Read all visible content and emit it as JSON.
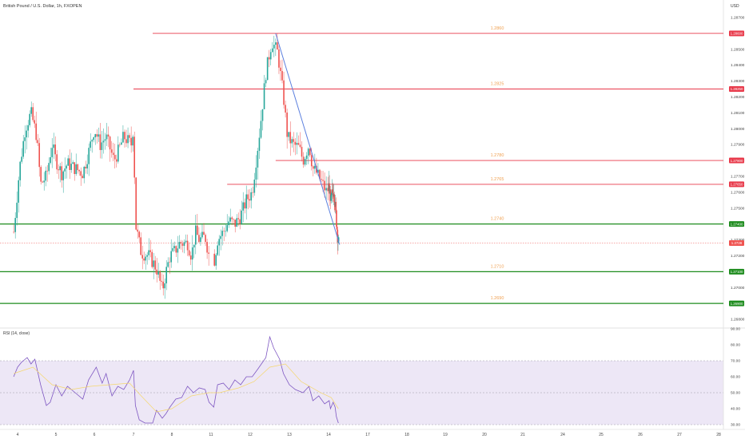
{
  "header": {
    "title": "British Pound / U.S. Dollar, 1h, FXOPEN",
    "currency": "USD"
  },
  "colors": {
    "up": "#26a69a",
    "down": "#ef5350",
    "resistance": "#e8394a",
    "support": "#1e8c1e",
    "trendline": "#5b7fde",
    "level_text": "#f0a050",
    "rsi_line": "#7e57c2",
    "rsi_ma": "#f5d76e",
    "rsi_band": "#ede7f6"
  },
  "chart_data": [
    {
      "type": "candlestick",
      "title": "British Pound / U.S. Dollar, 1h, FXOPEN",
      "ylim": [
        1.2675,
        1.2875
      ],
      "y_ticks": [
        "1.28700",
        "1.28600",
        "1.28500",
        "1.28400",
        "1.28300",
        "1.28200",
        "1.28100",
        "1.28000",
        "1.27900",
        "1.27800",
        "1.27700",
        "1.27600",
        "1.27500",
        "1.27400",
        "1.27300",
        "1.27200",
        "1.27100",
        "1.27000",
        "1.26900",
        "1.26800"
      ],
      "x_ticks": [
        "4",
        "5",
        "6",
        "7",
        "8",
        "11",
        "12",
        "13",
        "14",
        "17",
        "18",
        "19",
        "20",
        "21",
        "24",
        "25",
        "26",
        "27",
        "28"
      ],
      "x_tick_days": [
        4,
        5,
        6,
        7,
        8,
        11,
        12,
        13,
        14,
        17,
        18,
        19,
        20,
        21,
        24,
        25,
        26,
        27,
        28
      ],
      "current_price": "1.2728",
      "levels": [
        {
          "label": "1.2860",
          "tag": "1.28600",
          "price": 1.286,
          "kind": "resistance",
          "start_day": 7.5
        },
        {
          "label": "1.2825",
          "tag": "1.28250",
          "price": 1.2825,
          "kind": "resistance",
          "start_day": 7.0
        },
        {
          "label": "1.2780",
          "tag": "1.27800",
          "price": 1.278,
          "kind": "resistance",
          "start_day": 12.65
        },
        {
          "label": "1.2765",
          "tag": "1.27650",
          "price": 1.2765,
          "kind": "resistance",
          "start_day": 11.4
        },
        {
          "label": "1.2740",
          "tag": "1.27400",
          "price": 1.274,
          "kind": "support",
          "start_day": 3.9
        },
        {
          "label": "1.2710",
          "tag": "1.27100",
          "price": 1.271,
          "kind": "support",
          "start_day": 3.9
        },
        {
          "label": "1.2690",
          "tag": "1.26900",
          "price": 1.269,
          "kind": "support",
          "start_day": 3.9
        }
      ],
      "trendline": [
        {
          "day": 12.65,
          "price": 1.286
        },
        {
          "day": 14.85,
          "price": 1.2727
        }
      ],
      "price_path": [
        {
          "day": 3.9,
          "price": 1.2735
        },
        {
          "day": 4.05,
          "price": 1.2775
        },
        {
          "day": 4.2,
          "price": 1.28
        },
        {
          "day": 4.35,
          "price": 1.281
        },
        {
          "day": 4.5,
          "price": 1.2795
        },
        {
          "day": 4.6,
          "price": 1.2765
        },
        {
          "day": 4.75,
          "price": 1.277
        },
        {
          "day": 4.9,
          "price": 1.279
        },
        {
          "day": 5.0,
          "price": 1.278
        },
        {
          "day": 5.15,
          "price": 1.2772
        },
        {
          "day": 5.3,
          "price": 1.2778
        },
        {
          "day": 5.5,
          "price": 1.2775
        },
        {
          "day": 5.7,
          "price": 1.2772
        },
        {
          "day": 5.85,
          "price": 1.2785
        },
        {
          "day": 6.0,
          "price": 1.28
        },
        {
          "day": 6.15,
          "price": 1.279
        },
        {
          "day": 6.3,
          "price": 1.2795
        },
        {
          "day": 6.5,
          "price": 1.278
        },
        {
          "day": 6.6,
          "price": 1.2785
        },
        {
          "day": 6.75,
          "price": 1.2795
        },
        {
          "day": 6.95,
          "price": 1.279
        },
        {
          "day": 7.0,
          "price": 1.2803
        },
        {
          "day": 7.05,
          "price": 1.274
        },
        {
          "day": 7.2,
          "price": 1.2722
        },
        {
          "day": 7.4,
          "price": 1.272
        },
        {
          "day": 7.6,
          "price": 1.2712
        },
        {
          "day": 7.75,
          "price": 1.2698
        },
        {
          "day": 7.85,
          "price": 1.271
        },
        {
          "day": 7.95,
          "price": 1.272
        },
        {
          "day": 8.05,
          "price": 1.2722
        },
        {
          "day": 8.2,
          "price": 1.2728
        },
        {
          "day": 8.4,
          "price": 1.2728
        },
        {
          "day": 8.5,
          "price": 1.272
        },
        {
          "day": 8.6,
          "price": 1.2735
        },
        {
          "day": 8.7,
          "price": 1.273
        },
        {
          "day": 8.85,
          "price": 1.2732
        },
        {
          "day": 8.95,
          "price": 1.272
        },
        {
          "day": 11.05,
          "price": 1.2715
        },
        {
          "day": 11.15,
          "price": 1.273
        },
        {
          "day": 11.3,
          "price": 1.2735
        },
        {
          "day": 11.45,
          "price": 1.2742
        },
        {
          "day": 11.6,
          "price": 1.274
        },
        {
          "day": 11.75,
          "price": 1.2745
        },
        {
          "day": 11.9,
          "price": 1.2755
        },
        {
          "day": 12.05,
          "price": 1.276
        },
        {
          "day": 12.25,
          "price": 1.28
        },
        {
          "day": 12.4,
          "price": 1.2835
        },
        {
          "day": 12.55,
          "price": 1.2855
        },
        {
          "day": 12.7,
          "price": 1.2848
        },
        {
          "day": 12.85,
          "price": 1.282
        },
        {
          "day": 12.95,
          "price": 1.2795
        },
        {
          "day": 13.1,
          "price": 1.279
        },
        {
          "day": 13.25,
          "price": 1.2788
        },
        {
          "day": 13.35,
          "price": 1.278
        },
        {
          "day": 13.5,
          "price": 1.279
        },
        {
          "day": 13.6,
          "price": 1.2775
        },
        {
          "day": 13.7,
          "price": 1.2772
        },
        {
          "day": 13.85,
          "price": 1.2765
        },
        {
          "day": 13.95,
          "price": 1.276
        },
        {
          "day": 14.05,
          "price": 1.2765
        },
        {
          "day": 14.15,
          "price": 1.2752
        },
        {
          "day": 14.25,
          "price": 1.2758
        },
        {
          "day": 14.4,
          "price": 1.2762
        },
        {
          "day": 14.55,
          "price": 1.2748
        },
        {
          "day": 14.7,
          "price": 1.2732
        },
        {
          "day": 14.78,
          "price": 1.2728
        }
      ]
    },
    {
      "type": "line",
      "title": "RSI (14, close)",
      "ylim": [
        30,
        90
      ],
      "y_ticks": [
        "90.00",
        "80.00",
        "70.00",
        "60.00",
        "50.00",
        "40.00",
        "30.00"
      ],
      "bands": [
        30,
        50,
        70
      ],
      "series": [
        {
          "values": [
            {
              "day": 3.9,
              "v": 60
            },
            {
              "day": 4.0,
              "v": 66
            },
            {
              "day": 4.1,
              "v": 69
            },
            {
              "day": 4.25,
              "v": 72
            },
            {
              "day": 4.35,
              "v": 68
            },
            {
              "day": 4.45,
              "v": 71
            },
            {
              "day": 4.6,
              "v": 55
            },
            {
              "day": 4.75,
              "v": 42
            },
            {
              "day": 4.85,
              "v": 44
            },
            {
              "day": 5.0,
              "v": 55
            },
            {
              "day": 5.15,
              "v": 48
            },
            {
              "day": 5.3,
              "v": 54
            },
            {
              "day": 5.5,
              "v": 50
            },
            {
              "day": 5.7,
              "v": 46
            },
            {
              "day": 5.85,
              "v": 58
            },
            {
              "day": 6.05,
              "v": 66
            },
            {
              "day": 6.2,
              "v": 56
            },
            {
              "day": 6.3,
              "v": 62
            },
            {
              "day": 6.45,
              "v": 48
            },
            {
              "day": 6.6,
              "v": 54
            },
            {
              "day": 6.75,
              "v": 52
            },
            {
              "day": 6.9,
              "v": 58
            },
            {
              "day": 7.0,
              "v": 64
            },
            {
              "day": 7.05,
              "v": 42
            },
            {
              "day": 7.15,
              "v": 33
            },
            {
              "day": 7.3,
              "v": 31
            },
            {
              "day": 7.5,
              "v": 31
            },
            {
              "day": 7.6,
              "v": 39
            },
            {
              "day": 7.75,
              "v": 34
            },
            {
              "day": 7.85,
              "v": 37
            },
            {
              "day": 7.95,
              "v": 41
            },
            {
              "day": 8.1,
              "v": 46
            },
            {
              "day": 8.25,
              "v": 47
            },
            {
              "day": 8.4,
              "v": 54
            },
            {
              "day": 8.55,
              "v": 50
            },
            {
              "day": 8.7,
              "v": 53
            },
            {
              "day": 8.85,
              "v": 52
            },
            {
              "day": 8.95,
              "v": 44
            },
            {
              "day": 11.05,
              "v": 41
            },
            {
              "day": 11.15,
              "v": 55
            },
            {
              "day": 11.3,
              "v": 56
            },
            {
              "day": 11.45,
              "v": 52
            },
            {
              "day": 11.6,
              "v": 58
            },
            {
              "day": 11.75,
              "v": 55
            },
            {
              "day": 11.9,
              "v": 60
            },
            {
              "day": 12.05,
              "v": 60
            },
            {
              "day": 12.2,
              "v": 65
            },
            {
              "day": 12.4,
              "v": 72
            },
            {
              "day": 12.5,
              "v": 85
            },
            {
              "day": 12.6,
              "v": 78
            },
            {
              "day": 12.75,
              "v": 71
            },
            {
              "day": 12.85,
              "v": 62
            },
            {
              "day": 13.0,
              "v": 55
            },
            {
              "day": 13.15,
              "v": 52
            },
            {
              "day": 13.35,
              "v": 50
            },
            {
              "day": 13.5,
              "v": 54
            },
            {
              "day": 13.6,
              "v": 45
            },
            {
              "day": 13.75,
              "v": 48
            },
            {
              "day": 13.9,
              "v": 43
            },
            {
              "day": 14.05,
              "v": 45
            },
            {
              "day": 14.15,
              "v": 40
            },
            {
              "day": 14.35,
              "v": 44
            },
            {
              "day": 14.5,
              "v": 41
            },
            {
              "day": 14.6,
              "v": 35
            },
            {
              "day": 14.75,
              "v": 31
            }
          ]
        },
        {
          "values": [
            {
              "day": 3.9,
              "v": 62
            },
            {
              "day": 4.4,
              "v": 66
            },
            {
              "day": 4.9,
              "v": 55
            },
            {
              "day": 5.4,
              "v": 52
            },
            {
              "day": 5.9,
              "v": 54
            },
            {
              "day": 6.4,
              "v": 55
            },
            {
              "day": 6.9,
              "v": 56
            },
            {
              "day": 7.2,
              "v": 48
            },
            {
              "day": 7.6,
              "v": 38
            },
            {
              "day": 8.0,
              "v": 40
            },
            {
              "day": 8.5,
              "v": 48
            },
            {
              "day": 8.95,
              "v": 50
            },
            {
              "day": 11.2,
              "v": 50
            },
            {
              "day": 11.7,
              "v": 53
            },
            {
              "day": 12.1,
              "v": 57
            },
            {
              "day": 12.5,
              "v": 66
            },
            {
              "day": 12.9,
              "v": 68
            },
            {
              "day": 13.3,
              "v": 57
            },
            {
              "day": 13.8,
              "v": 50
            },
            {
              "day": 14.2,
              "v": 47
            },
            {
              "day": 14.75,
              "v": 40
            }
          ]
        }
      ]
    }
  ]
}
